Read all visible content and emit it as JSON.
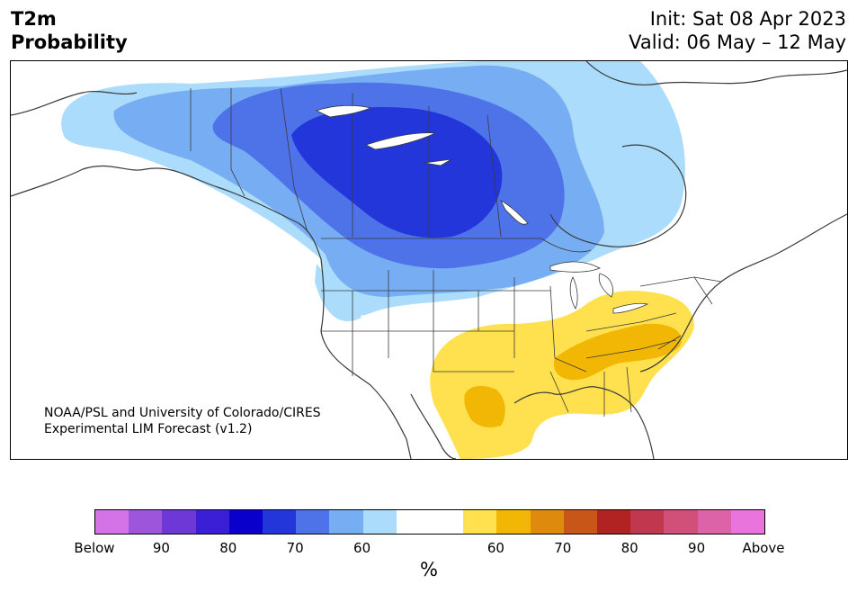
{
  "header": {
    "variable": "T2m",
    "product": "Probability",
    "init": "Init: Sat 08 Apr 2023",
    "valid": "Valid: 06 May – 12 May"
  },
  "credit": {
    "line1": "NOAA/PSL and University of Colorado/CIRES",
    "line2": "Experimental LIM Forecast (v1.2)"
  },
  "colorbar": {
    "unit": "%",
    "colors": [
      "#d473e8",
      "#9d55dc",
      "#6d38d6",
      "#3a1fd6",
      "#0a00cc",
      "#2336da",
      "#4e73e8",
      "#77aef3",
      "#acdcfb",
      "#ffffff",
      "#ffffff",
      "#ffe14f",
      "#f2b705",
      "#de8a0c",
      "#c75618",
      "#b12222",
      "#c1384e",
      "#d0507a",
      "#dc63a8",
      "#e974dc"
    ],
    "labels": [
      "Below",
      "90",
      "80",
      "70",
      "60",
      "60",
      "70",
      "80",
      "90",
      "Above"
    ]
  },
  "map": {
    "features": [
      "great-lakes",
      "hudson-bay",
      "gulf-of-mexico",
      "state-borders",
      "province-borders"
    ]
  }
}
